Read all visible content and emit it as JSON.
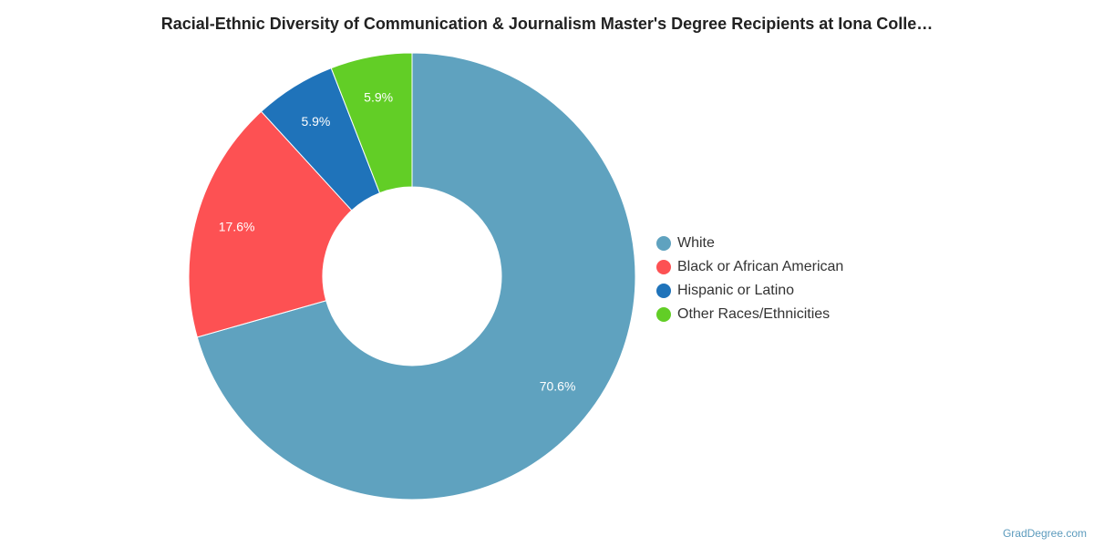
{
  "chart_data": {
    "type": "pie",
    "title": "Racial-Ethnic Diversity of Communication & Journalism Master's Degree Recipients at Iona Colle…",
    "donut": true,
    "legend_position": "right",
    "slices": [
      {
        "name": "White",
        "value": 70.6,
        "label": "70.6%",
        "color": "#5fa2bf"
      },
      {
        "name": "Black or African American",
        "value": 17.6,
        "label": "17.6%",
        "color": "#fd5153"
      },
      {
        "name": "Hispanic or Latino",
        "value": 5.9,
        "label": "5.9%",
        "color": "#1f73ba"
      },
      {
        "name": "Other Races/Ethnicities",
        "value": 5.9,
        "label": "5.9%",
        "color": "#62ce26"
      }
    ]
  },
  "credit": "GradDegree.com"
}
